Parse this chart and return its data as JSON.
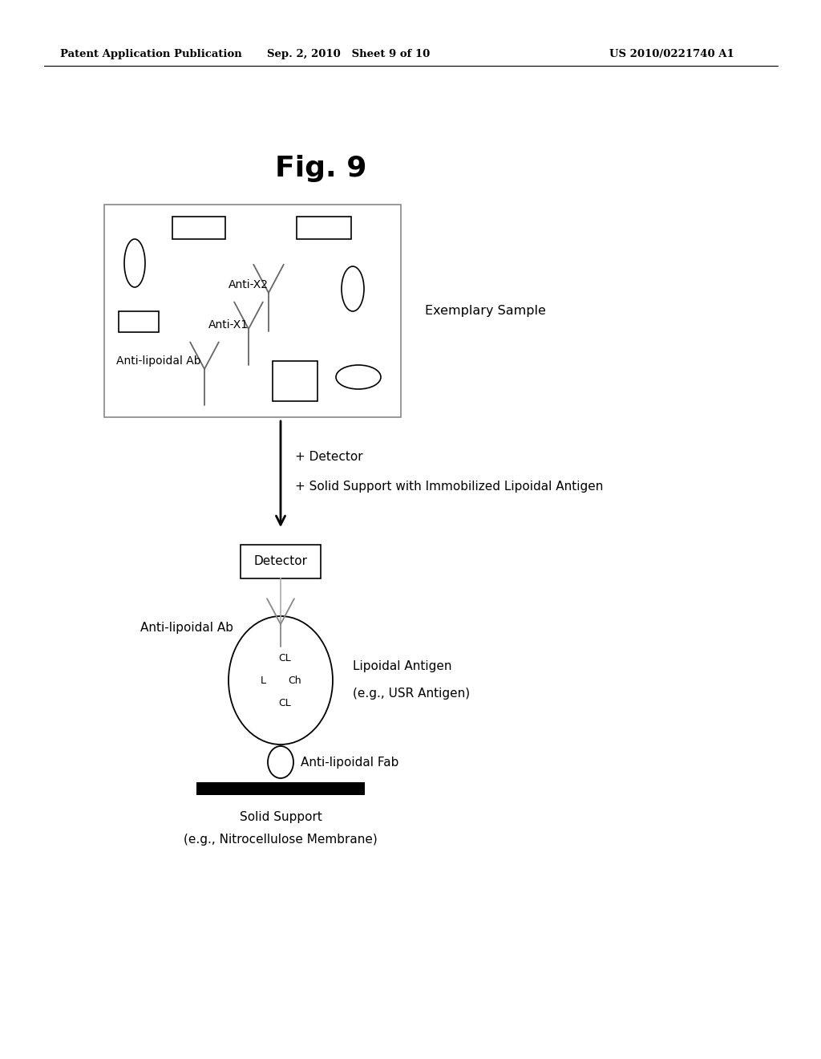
{
  "background_color": "#ffffff",
  "header_left": "Patent Application Publication",
  "header_mid": "Sep. 2, 2010   Sheet 9 of 10",
  "header_right": "US 2010/0221740 A1",
  "fig_title": "Fig. 9",
  "sample_label": "Exemplary Sample",
  "label_antiX2": "Anti-X2",
  "label_antiX1": "Anti-X1",
  "label_antilipoidalAb_box": "Anti-lipoidal Ab",
  "arrow_step1_text1": "+ Detector",
  "arrow_step1_text2": "+ Solid Support with Immobilized Lipoidal Antigen",
  "detector_box_label": "Detector",
  "label_antilipoidalAb_lower": "Anti-lipoidal Ab",
  "lipoidal_antigen_label1": "Lipoidal Antigen",
  "lipoidal_antigen_label2": "(e.g., USR Antigen)",
  "antilipoidal_fab_label": "Anti-lipoidal Fab",
  "solid_support_label1": "Solid Support",
  "solid_support_label2": "(e.g., Nitrocellulose Membrane)",
  "cl_top": "CL",
  "l_label": "L",
  "ch_label": "Ch",
  "cl_bottom": "CL"
}
